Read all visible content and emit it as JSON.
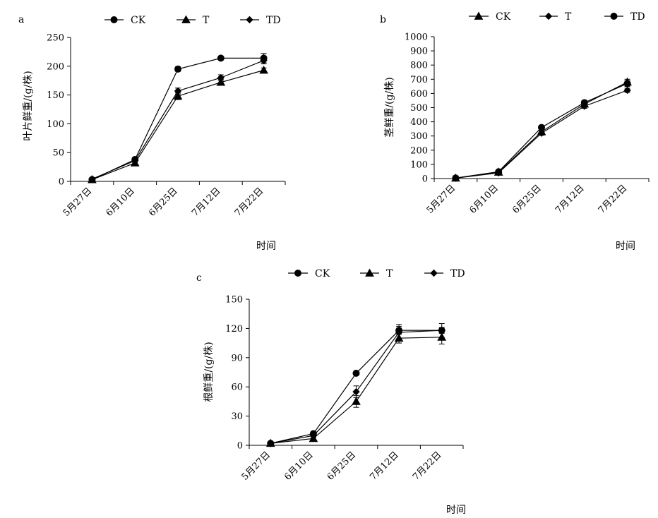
{
  "chart_data": [
    {
      "panel": "a",
      "type": "line",
      "categories": [
        "5月27日",
        "6月10日",
        "6月25日",
        "7月12日",
        "7月22日"
      ],
      "ylabel": "叶片鲜重/(g/株)",
      "xlabel": "时间",
      "ylim": [
        0,
        250
      ],
      "yticks": [
        0,
        50,
        100,
        150,
        200,
        250
      ],
      "legend_position": "top",
      "series": [
        {
          "name": "CK",
          "marker": "circle",
          "values": [
            3,
            38,
            195,
            214,
            214
          ],
          "errors": [
            1,
            3,
            4,
            3,
            8
          ]
        },
        {
          "name": "T",
          "marker": "triangle",
          "values": [
            3,
            32,
            148,
            172,
            193
          ],
          "errors": [
            1,
            3,
            6,
            5,
            4
          ]
        },
        {
          "name": "TD",
          "marker": "diamond",
          "values": [
            4,
            36,
            157,
            180,
            210
          ],
          "errors": [
            1,
            3,
            5,
            5,
            6
          ]
        }
      ]
    },
    {
      "panel": "b",
      "type": "line",
      "categories": [
        "5月27日",
        "6月10日",
        "6月25日",
        "7月12日",
        "7月22日"
      ],
      "ylabel": "茎鲜重/(g/株)",
      "xlabel": "时间",
      "ylim": [
        0,
        1000
      ],
      "yticks": [
        0,
        100,
        200,
        300,
        400,
        500,
        600,
        700,
        800,
        900,
        1000
      ],
      "legend_position": "top",
      "series": [
        {
          "name": "CK",
          "marker": "triangle",
          "values": [
            3,
            45,
            330,
            525,
            680
          ],
          "errors": [
            2,
            5,
            15,
            15,
            20
          ]
        },
        {
          "name": "T",
          "marker": "diamond",
          "values": [
            3,
            40,
            320,
            510,
            622
          ],
          "errors": [
            2,
            5,
            15,
            15,
            15
          ]
        },
        {
          "name": "TD",
          "marker": "circle",
          "values": [
            4,
            48,
            360,
            535,
            670
          ],
          "errors": [
            2,
            5,
            15,
            15,
            20
          ]
        }
      ]
    },
    {
      "panel": "c",
      "type": "line",
      "categories": [
        "5月27日",
        "6月10日",
        "6月25日",
        "7月12日",
        "7月22日"
      ],
      "ylabel": "根鲜重/(g/株)",
      "xlabel": "时间",
      "ylim": [
        0,
        150
      ],
      "yticks": [
        0,
        30,
        60,
        90,
        120,
        150
      ],
      "legend_position": "top",
      "series": [
        {
          "name": "CK",
          "marker": "circle",
          "values": [
            2,
            12,
            74,
            118,
            118
          ],
          "errors": [
            0.5,
            1,
            2,
            4,
            3
          ]
        },
        {
          "name": "T",
          "marker": "triangle",
          "values": [
            2,
            7,
            45,
            110,
            111
          ],
          "errors": [
            0.5,
            1,
            6,
            5,
            7
          ]
        },
        {
          "name": "TD",
          "marker": "diamond",
          "values": [
            2,
            10,
            55,
            116,
            118
          ],
          "errors": [
            0.5,
            1,
            6,
            8,
            7
          ]
        }
      ]
    }
  ]
}
